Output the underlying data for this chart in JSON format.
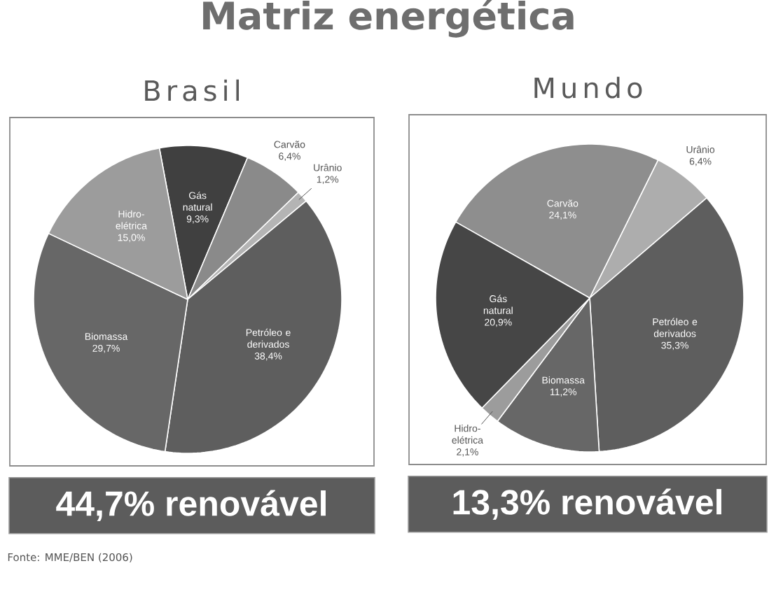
{
  "chart_data": [
    {
      "type": "other",
      "title": "Matriz energética",
      "annotations": [
        "Fonte: MME/BEN (2006)"
      ]
    },
    {
      "type": "pie",
      "title": "Brasil",
      "categories": [
        "Gás natural",
        "Carvão",
        "Urânio",
        "Petróleo e derivados",
        "Biomassa",
        "Hidro-elétrica"
      ],
      "values": [
        9.3,
        6.4,
        1.2,
        38.4,
        29.7,
        15.0
      ],
      "value_labels": [
        "9,3%",
        "6,4%",
        "1,2%",
        "38,4%",
        "29,7%",
        "15,0%"
      ],
      "colors": [
        "#404040",
        "#8a8a8a",
        "#b4b4b4",
        "#5e5e5e",
        "#676767",
        "#9c9c9c"
      ],
      "annotations": [
        "44,7% renovável"
      ]
    },
    {
      "type": "pie",
      "title": "Mundo",
      "categories": [
        "Carvão",
        "Urânio",
        "Petróleo e derivados",
        "Biomassa",
        "Hidro-elétrica",
        "Gás natural"
      ],
      "values": [
        24.1,
        6.4,
        35.3,
        11.2,
        2.1,
        20.9
      ],
      "value_labels": [
        "24,1%",
        "6,4%",
        "35,3%",
        "11,2%",
        "2,1%",
        "20,9%"
      ],
      "colors": [
        "#8e8e8e",
        "#adadad",
        "#5e5e5e",
        "#676767",
        "#9c9c9c",
        "#464646"
      ],
      "annotations": [
        "13,3% renovável"
      ]
    }
  ]
}
